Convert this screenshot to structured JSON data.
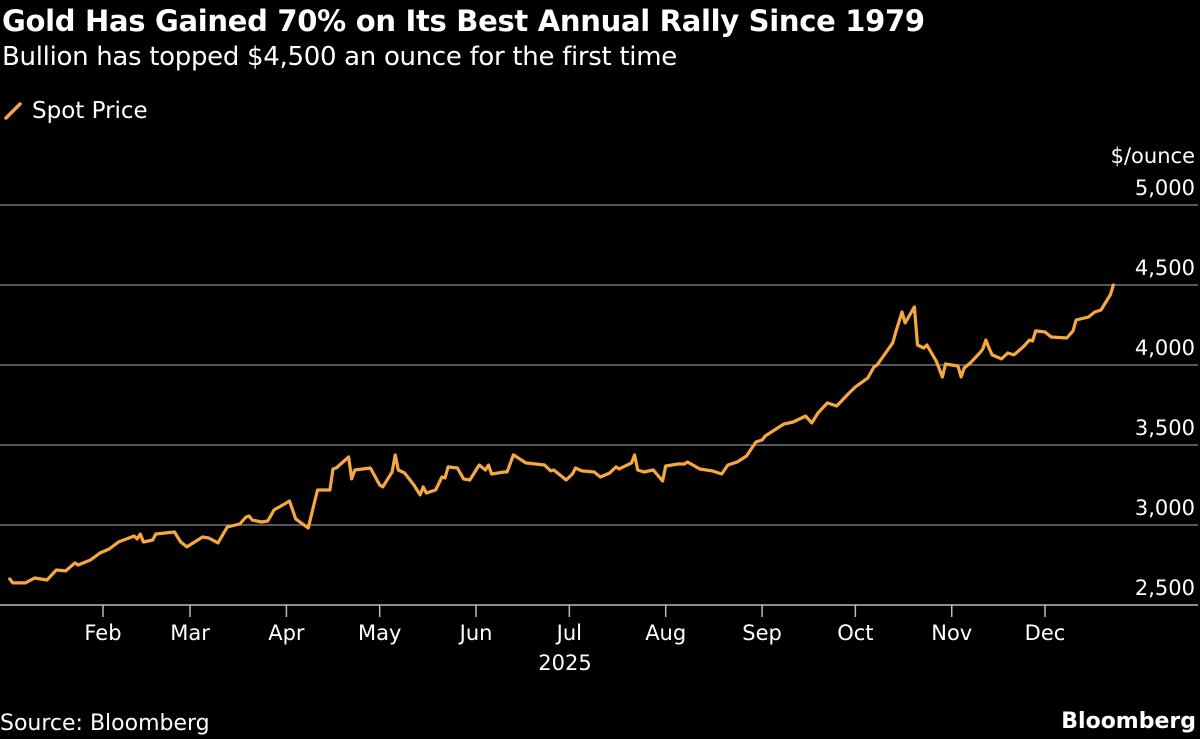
{
  "header": {
    "title": "Gold Has Gained 70% on Its Best Annual Rally Since 1979",
    "subtitle": "Bullion has topped $4,500 an ounce for the first time"
  },
  "footer": {
    "source": "Source: Bloomberg",
    "brand": "Bloomberg"
  },
  "colors": {
    "line": "#f5a742",
    "grid": "#8a8a8a",
    "background": "#000000"
  },
  "chart_data": {
    "type": "line",
    "title": "Gold Has Gained 70% on Its Best Annual Rally Since 1979",
    "subtitle": "Bullion has topped $4,500 an ounce for the first time",
    "ylabel": "$/ounce",
    "xlabel": "2025",
    "ylim": [
      2500,
      5000
    ],
    "yticks": [
      2500,
      3000,
      3500,
      4000,
      4500,
      5000
    ],
    "ytick_labels": [
      "2,500",
      "3,000",
      "3,500",
      "4,000",
      "4,500",
      "5,000"
    ],
    "xticks": [
      "2025-02-01",
      "2025-03-01",
      "2025-04-01",
      "2025-05-01",
      "2025-06-01",
      "2025-07-01",
      "2025-08-01",
      "2025-09-01",
      "2025-10-01",
      "2025-11-01",
      "2025-12-01"
    ],
    "xtick_labels": [
      "Feb",
      "Mar",
      "Apr",
      "May",
      "Jun",
      "Jul",
      "Aug",
      "Sep",
      "Oct",
      "Nov",
      "Dec"
    ],
    "grid": true,
    "legend_position": "top-left",
    "series": [
      {
        "name": "Spot Price",
        "color": "#f5a742",
        "points": [
          [
            "2025-01-02",
            2663
          ],
          [
            "2025-01-03",
            2638
          ],
          [
            "2025-01-07",
            2638
          ],
          [
            "2025-01-10",
            2669
          ],
          [
            "2025-01-14",
            2656
          ],
          [
            "2025-01-17",
            2719
          ],
          [
            "2025-01-20",
            2713
          ],
          [
            "2025-01-23",
            2763
          ],
          [
            "2025-01-24",
            2750
          ],
          [
            "2025-01-28",
            2781
          ],
          [
            "2025-01-31",
            2825
          ],
          [
            "2025-02-03",
            2850
          ],
          [
            "2025-02-06",
            2894
          ],
          [
            "2025-02-11",
            2931
          ],
          [
            "2025-02-12",
            2913
          ],
          [
            "2025-02-13",
            2944
          ],
          [
            "2025-02-14",
            2894
          ],
          [
            "2025-02-17",
            2906
          ],
          [
            "2025-02-18",
            2944
          ],
          [
            "2025-02-24",
            2956
          ],
          [
            "2025-02-26",
            2894
          ],
          [
            "2025-02-28",
            2863
          ],
          [
            "2025-03-05",
            2925
          ],
          [
            "2025-03-07",
            2919
          ],
          [
            "2025-03-10",
            2888
          ],
          [
            "2025-03-13",
            2988
          ],
          [
            "2025-03-17",
            3006
          ],
          [
            "2025-03-19",
            3050
          ],
          [
            "2025-03-20",
            3056
          ],
          [
            "2025-03-21",
            3031
          ],
          [
            "2025-03-24",
            3019
          ],
          [
            "2025-03-26",
            3025
          ],
          [
            "2025-03-28",
            3094
          ],
          [
            "2025-04-01",
            3138
          ],
          [
            "2025-04-02",
            3150
          ],
          [
            "2025-04-04",
            3038
          ],
          [
            "2025-04-08",
            2981
          ],
          [
            "2025-04-11",
            3219
          ],
          [
            "2025-04-15",
            3219
          ],
          [
            "2025-04-16",
            3350
          ],
          [
            "2025-04-17",
            3356
          ],
          [
            "2025-04-21",
            3425
          ],
          [
            "2025-04-22",
            3288
          ],
          [
            "2025-04-23",
            3344
          ],
          [
            "2025-04-28",
            3356
          ],
          [
            "2025-05-01",
            3250
          ],
          [
            "2025-05-02",
            3238
          ],
          [
            "2025-05-05",
            3331
          ],
          [
            "2025-05-06",
            3438
          ],
          [
            "2025-05-07",
            3344
          ],
          [
            "2025-05-09",
            3325
          ],
          [
            "2025-05-12",
            3250
          ],
          [
            "2025-05-14",
            3188
          ],
          [
            "2025-05-15",
            3238
          ],
          [
            "2025-05-16",
            3200
          ],
          [
            "2025-05-19",
            3219
          ],
          [
            "2025-05-21",
            3300
          ],
          [
            "2025-05-22",
            3294
          ],
          [
            "2025-05-23",
            3363
          ],
          [
            "2025-05-26",
            3356
          ],
          [
            "2025-05-28",
            3288
          ],
          [
            "2025-05-30",
            3281
          ],
          [
            "2025-06-02",
            3375
          ],
          [
            "2025-06-04",
            3344
          ],
          [
            "2025-06-05",
            3375
          ],
          [
            "2025-06-06",
            3319
          ],
          [
            "2025-06-10",
            3331
          ],
          [
            "2025-06-11",
            3331
          ],
          [
            "2025-06-13",
            3438
          ],
          [
            "2025-06-17",
            3388
          ],
          [
            "2025-06-23",
            3375
          ],
          [
            "2025-06-25",
            3338
          ],
          [
            "2025-06-26",
            3344
          ],
          [
            "2025-06-30",
            3281
          ],
          [
            "2025-07-02",
            3319
          ],
          [
            "2025-07-03",
            3356
          ],
          [
            "2025-07-05",
            3338
          ],
          [
            "2025-07-09",
            3331
          ],
          [
            "2025-07-11",
            3300
          ],
          [
            "2025-07-14",
            3325
          ],
          [
            "2025-07-16",
            3363
          ],
          [
            "2025-07-17",
            3350
          ],
          [
            "2025-07-21",
            3388
          ],
          [
            "2025-07-22",
            3438
          ],
          [
            "2025-07-23",
            3344
          ],
          [
            "2025-07-25",
            3331
          ],
          [
            "2025-07-28",
            3344
          ],
          [
            "2025-07-31",
            3275
          ],
          [
            "2025-08-01",
            3369
          ],
          [
            "2025-08-05",
            3381
          ],
          [
            "2025-08-07",
            3381
          ],
          [
            "2025-08-08",
            3394
          ],
          [
            "2025-08-12",
            3350
          ],
          [
            "2025-08-16",
            3338
          ],
          [
            "2025-08-19",
            3319
          ],
          [
            "2025-08-21",
            3375
          ],
          [
            "2025-08-24",
            3394
          ],
          [
            "2025-08-27",
            3431
          ],
          [
            "2025-08-30",
            3519
          ],
          [
            "2025-09-01",
            3531
          ],
          [
            "2025-09-02",
            3556
          ],
          [
            "2025-09-05",
            3594
          ],
          [
            "2025-09-08",
            3631
          ],
          [
            "2025-09-11",
            3644
          ],
          [
            "2025-09-15",
            3681
          ],
          [
            "2025-09-17",
            3638
          ],
          [
            "2025-09-19",
            3700
          ],
          [
            "2025-09-22",
            3763
          ],
          [
            "2025-09-25",
            3744
          ],
          [
            "2025-09-29",
            3825
          ],
          [
            "2025-10-01",
            3863
          ],
          [
            "2025-10-05",
            3919
          ],
          [
            "2025-10-07",
            3988
          ],
          [
            "2025-10-08",
            4000
          ],
          [
            "2025-10-13",
            4138
          ],
          [
            "2025-10-14",
            4206
          ],
          [
            "2025-10-16",
            4331
          ],
          [
            "2025-10-17",
            4263
          ],
          [
            "2025-10-20",
            4363
          ],
          [
            "2025-10-21",
            4125
          ],
          [
            "2025-10-23",
            4106
          ],
          [
            "2025-10-24",
            4125
          ],
          [
            "2025-10-27",
            4025
          ],
          [
            "2025-10-29",
            3925
          ],
          [
            "2025-10-30",
            4006
          ],
          [
            "2025-11-03",
            3994
          ],
          [
            "2025-11-04",
            3925
          ],
          [
            "2025-11-05",
            3981
          ],
          [
            "2025-11-07",
            4013
          ],
          [
            "2025-11-10",
            4075
          ],
          [
            "2025-11-11",
            4100
          ],
          [
            "2025-11-12",
            4156
          ],
          [
            "2025-11-13",
            4106
          ],
          [
            "2025-11-14",
            4063
          ],
          [
            "2025-11-17",
            4038
          ],
          [
            "2025-11-19",
            4075
          ],
          [
            "2025-11-21",
            4063
          ],
          [
            "2025-11-24",
            4113
          ],
          [
            "2025-11-26",
            4156
          ],
          [
            "2025-11-27",
            4150
          ],
          [
            "2025-11-28",
            4213
          ],
          [
            "2025-12-01",
            4206
          ],
          [
            "2025-12-03",
            4175
          ],
          [
            "2025-12-08",
            4169
          ],
          [
            "2025-12-10",
            4213
          ],
          [
            "2025-12-11",
            4281
          ],
          [
            "2025-12-15",
            4300
          ],
          [
            "2025-12-17",
            4331
          ],
          [
            "2025-12-19",
            4344
          ],
          [
            "2025-12-22",
            4438
          ],
          [
            "2025-12-23",
            4500
          ]
        ]
      }
    ]
  }
}
